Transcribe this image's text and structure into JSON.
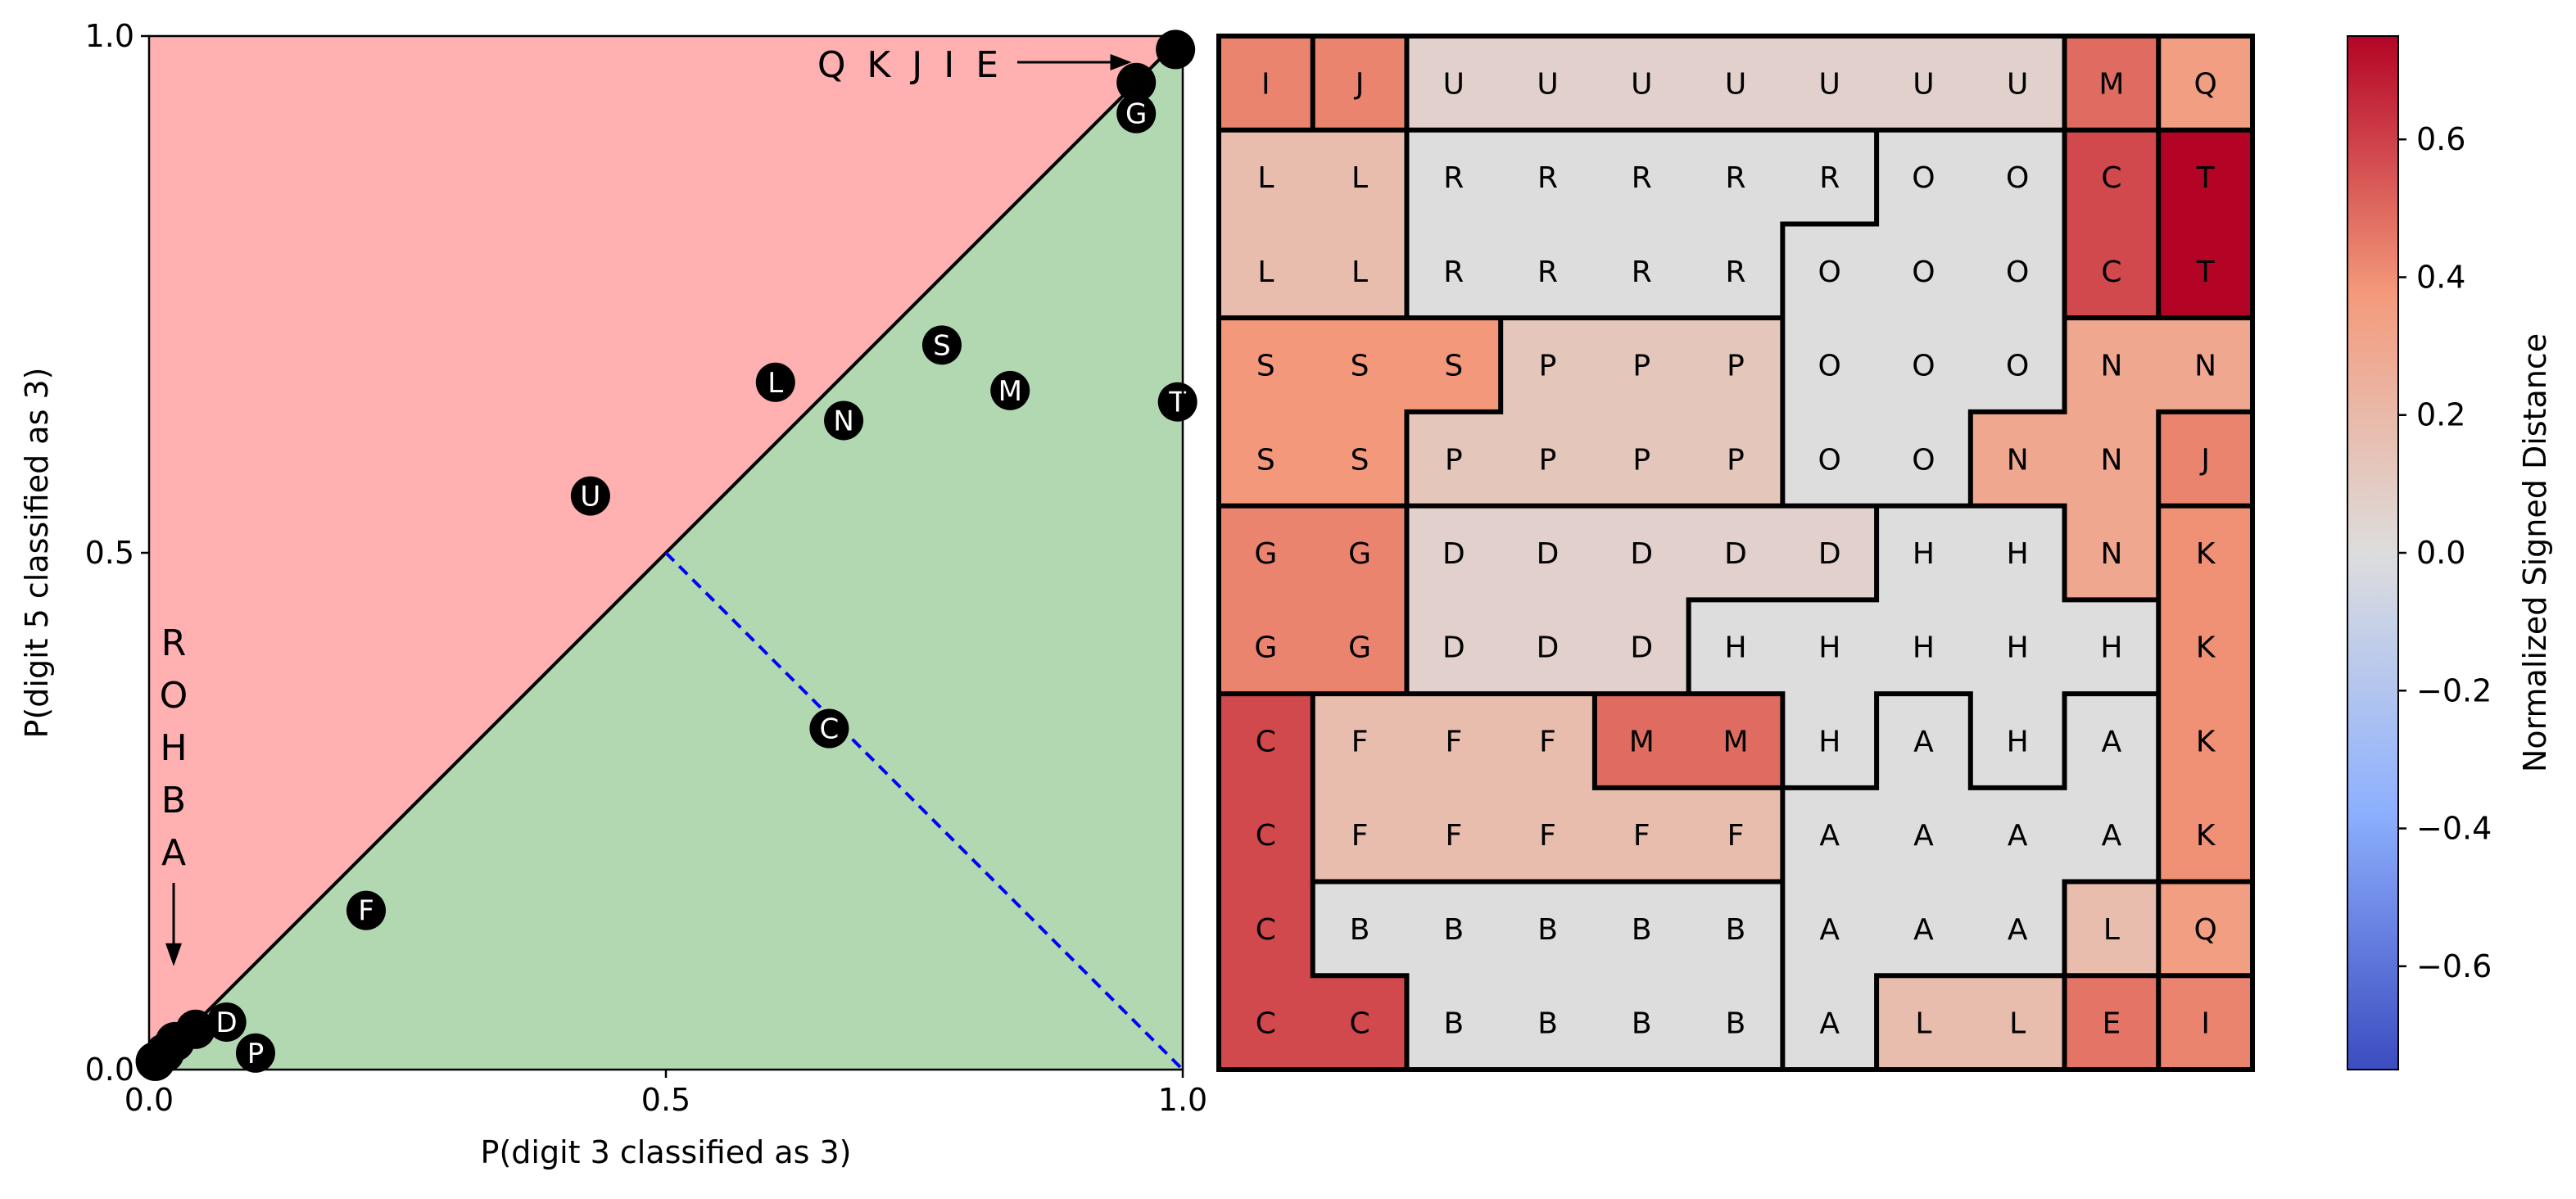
{
  "chart_data": [
    {
      "type": "scatter",
      "xlabel": "P(digit 3 classified as 3)",
      "ylabel": "P(digit 5 classified as 3)",
      "xlim": [
        0,
        1
      ],
      "ylim": [
        0,
        1
      ],
      "xticks": [
        "0.0",
        "0.5",
        "1.0"
      ],
      "yticks": [
        "0.0",
        "0.5",
        "1.0"
      ],
      "regions": [
        {
          "name": "above-diagonal",
          "color": "#ffb0b0"
        },
        {
          "name": "below-diagonal",
          "color": "#b2d8b2"
        }
      ],
      "diagonal_color": "#000000",
      "reference_line": {
        "from": [
          0.5,
          0.5
        ],
        "to": [
          1.0,
          0.0
        ],
        "style": "dashed",
        "color": "#0000ff"
      },
      "marker_color": "#000000",
      "points": [
        {
          "label": "U",
          "x": 0.427,
          "y": 0.555
        },
        {
          "label": "L",
          "x": 0.606,
          "y": 0.665
        },
        {
          "label": "N",
          "x": 0.672,
          "y": 0.628
        },
        {
          "label": "S",
          "x": 0.767,
          "y": 0.701
        },
        {
          "label": "M",
          "x": 0.833,
          "y": 0.657
        },
        {
          "label": "T",
          "x": 0.995,
          "y": 0.646
        },
        {
          "label": "C",
          "x": 0.658,
          "y": 0.33
        },
        {
          "label": "F",
          "x": 0.21,
          "y": 0.154
        },
        {
          "label": "D",
          "x": 0.075,
          "y": 0.046
        },
        {
          "label": "P",
          "x": 0.103,
          "y": 0.016
        },
        {
          "label": "G",
          "x": 0.955,
          "y": 0.925
        },
        {
          "label": "",
          "x": 0.955,
          "y": 0.955
        },
        {
          "label": "",
          "x": 0.993,
          "y": 0.987
        },
        {
          "label": "",
          "x": 0.045,
          "y": 0.039
        },
        {
          "label": "",
          "x": 0.025,
          "y": 0.027
        },
        {
          "label": "",
          "x": 0.015,
          "y": 0.016
        },
        {
          "label": "",
          "x": 0.006,
          "y": 0.008
        }
      ],
      "annotations": [
        {
          "text": "Q K J  I  E",
          "arrow": "right",
          "target": [
            0.96,
            0.975
          ]
        },
        {
          "text": "R\nO\nH\nB\nA",
          "arrow": "down",
          "target": [
            0.025,
            0.1
          ]
        }
      ]
    },
    {
      "type": "heatmap",
      "colorbar": {
        "label": "Normalized Signed Distance",
        "range": [
          -0.75,
          0.75
        ],
        "ticks": [
          "0.6",
          "0.4",
          "0.2",
          "0.0",
          "−0.2",
          "−0.4",
          "−0.6"
        ],
        "tick_values": [
          0.6,
          0.4,
          0.2,
          0.0,
          -0.2,
          -0.4,
          -0.6
        ],
        "colormap": "coolwarm"
      },
      "values": {
        "A": 0.0,
        "B": 0.0,
        "C": 0.58,
        "D": 0.07,
        "E": 0.47,
        "F": 0.18,
        "G": 0.43,
        "H": 0.0,
        "I": 0.43,
        "J": 0.43,
        "K": 0.4,
        "L": 0.18,
        "M": 0.49,
        "N": 0.3,
        "O": 0.0,
        "P": 0.13,
        "Q": 0.35,
        "R": 0.0,
        "S": 0.38,
        "T": 0.75,
        "U": 0.07
      },
      "grid": [
        "I J U U U U U U U M Q",
        "L L R R R R R O O C T",
        "L L R R R R O O O C T",
        "S S S P P P O O O N N",
        "S S P P P P O O N N J",
        "G G D D D D D H H N K",
        "G G D D D H H H H H K",
        "C F F F M M H A H A K",
        "C F F F F F A A A A K",
        "C B B B B B A A A L Q",
        "C C B B B B A L L E I"
      ]
    }
  ]
}
